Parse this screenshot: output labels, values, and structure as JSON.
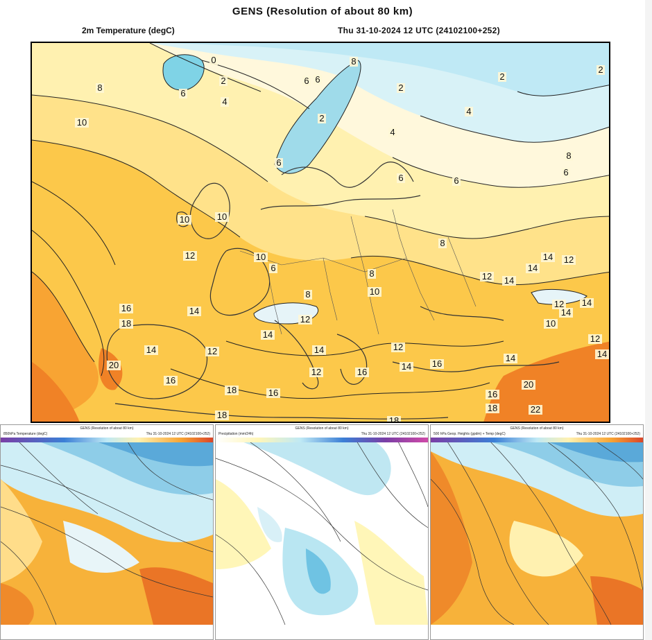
{
  "map": {
    "title": "GENS (Resolution of about 80 km)",
    "variable": "2m Temperature (degC)",
    "valid_time": "Thu 31-10-2024 12 UTC (24102100+252)",
    "contour_labels": [
      "0",
      "2",
      "4",
      "6",
      "8",
      "10",
      "12",
      "14",
      "16",
      "18",
      "20",
      "22"
    ],
    "colors": {
      "cold_blue": "#bfe9f5",
      "pale": "#fff5c8",
      "light_yellow": "#ffe28a",
      "yellow": "#fcc84a",
      "orange": "#f8a433",
      "deep_orange": "#f08226"
    }
  },
  "thumbnails": [
    {
      "title": "GENS (Resolution of about 80 km)",
      "variable": "850hPa Temperature (degC)",
      "valid_time": "Thu 31-10-2024 12 UTC (24102100+252)"
    },
    {
      "title": "GENS (Resolution of about 80 km)",
      "variable": "Precipitation (mm/24h)",
      "valid_time": "Thu 31-10-2024 12 UTC (24102100+252)"
    },
    {
      "title": "GENS (Resolution of about 80 km)",
      "variable": "500 hPa Geop. Heights (gpdm) + Temp (degC)",
      "valid_time": "Thu 31-10-2024 12 UTC (24102100+252)"
    }
  ]
}
